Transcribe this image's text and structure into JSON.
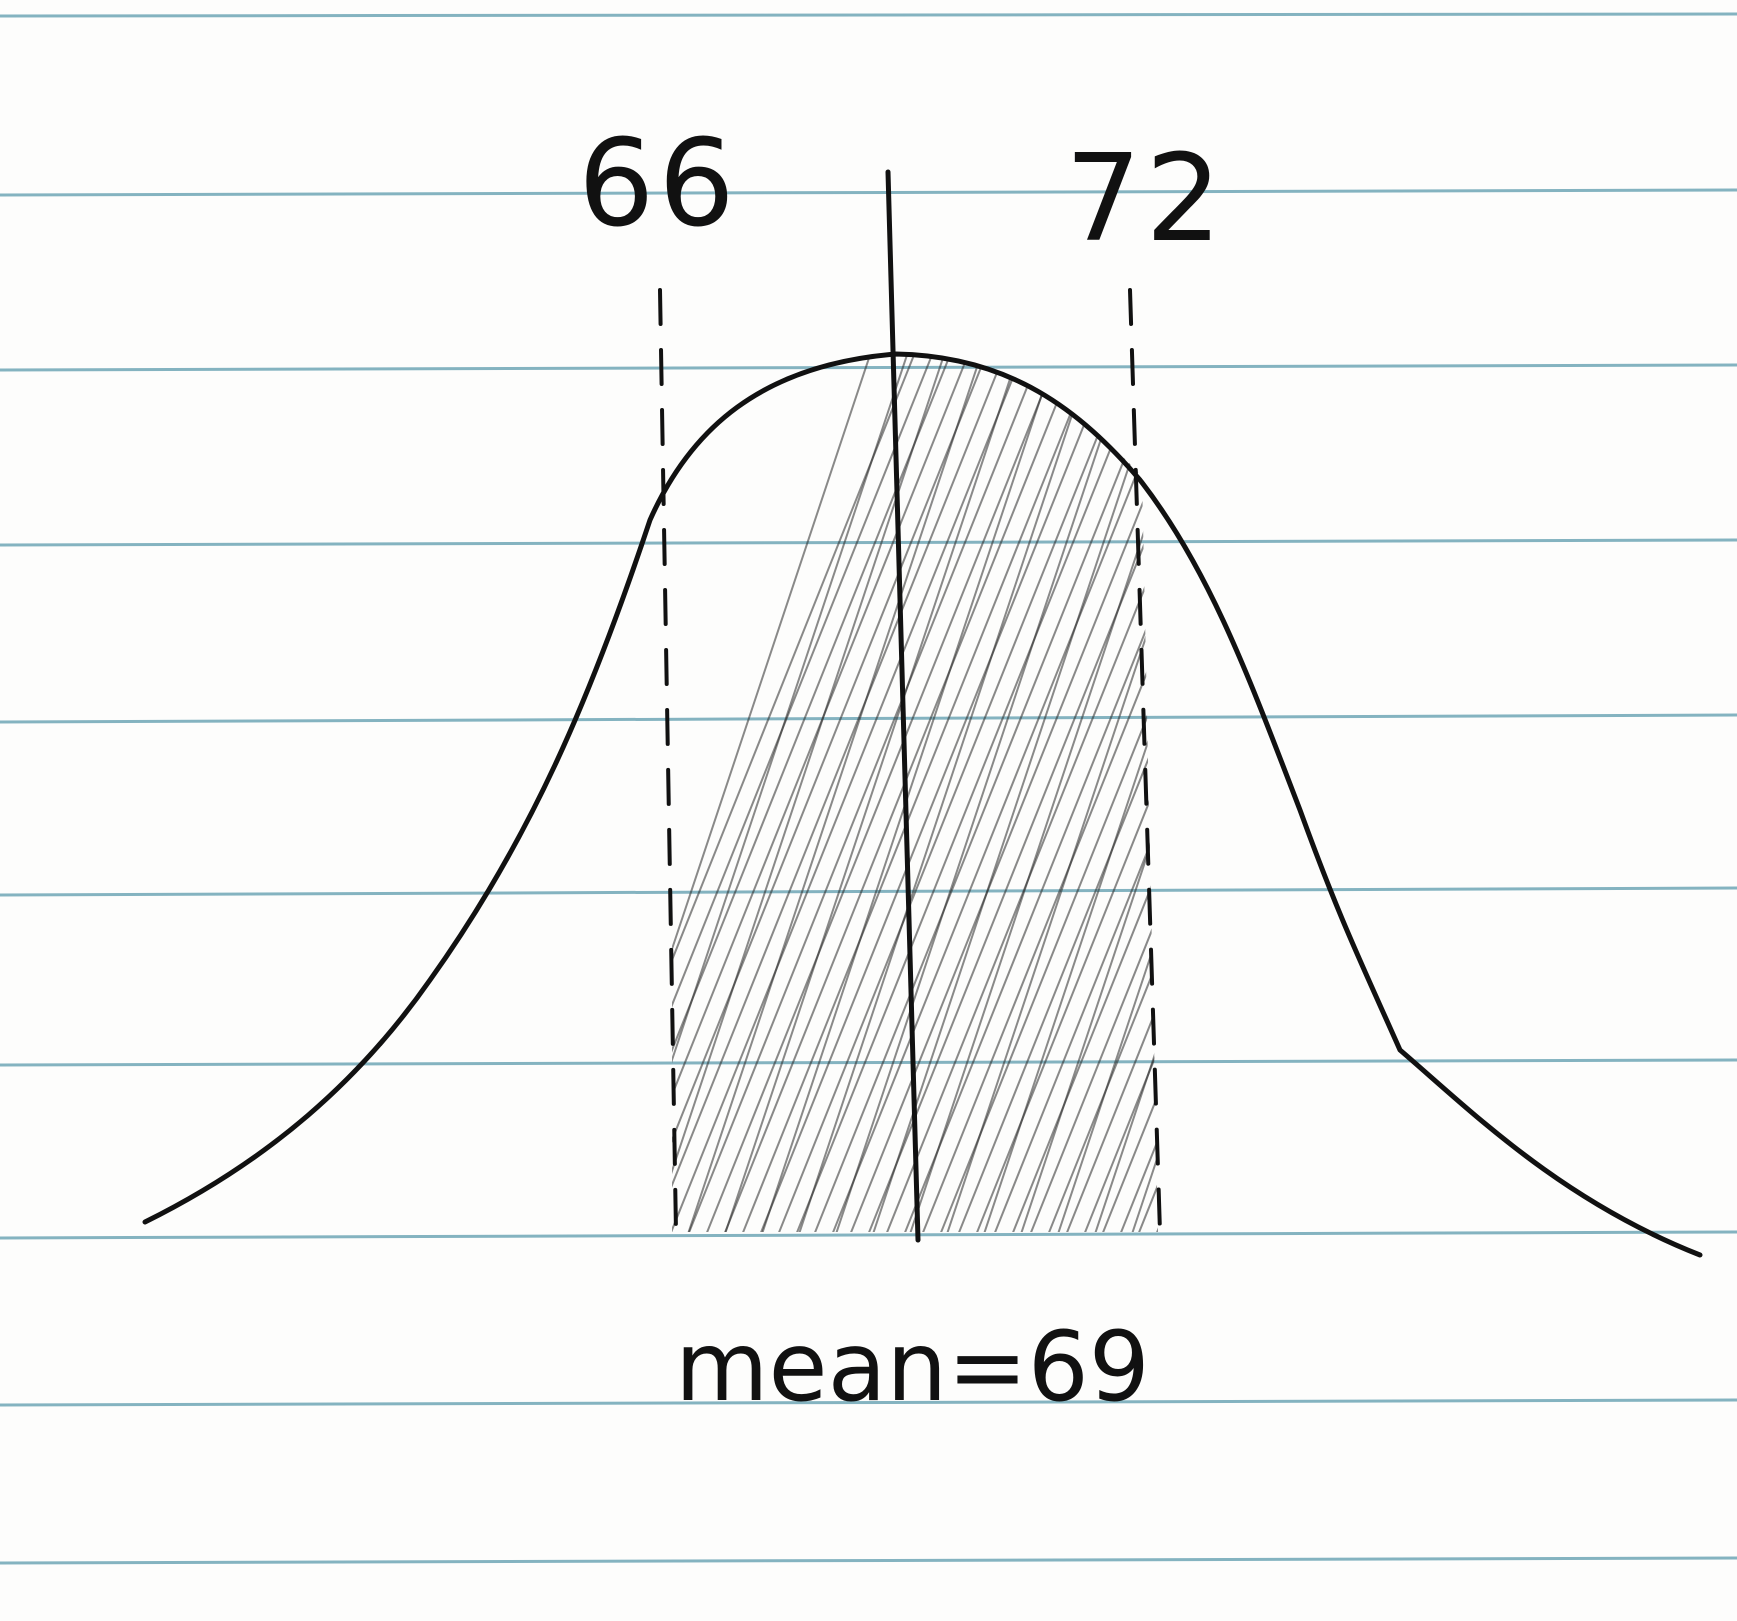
{
  "labels": {
    "lower_bound": "66",
    "upper_bound": "72",
    "caption": "mean=69"
  },
  "chart_data": {
    "type": "area",
    "distribution": "normal",
    "mean": 69,
    "shaded_interval": [
      66,
      72
    ],
    "marked_values": [
      66,
      72
    ]
  },
  "colors": {
    "paper": "#fdfdfc",
    "rule_lines": "#6fa7b6",
    "ink": "#111111",
    "shading": "#2b2b2b"
  }
}
